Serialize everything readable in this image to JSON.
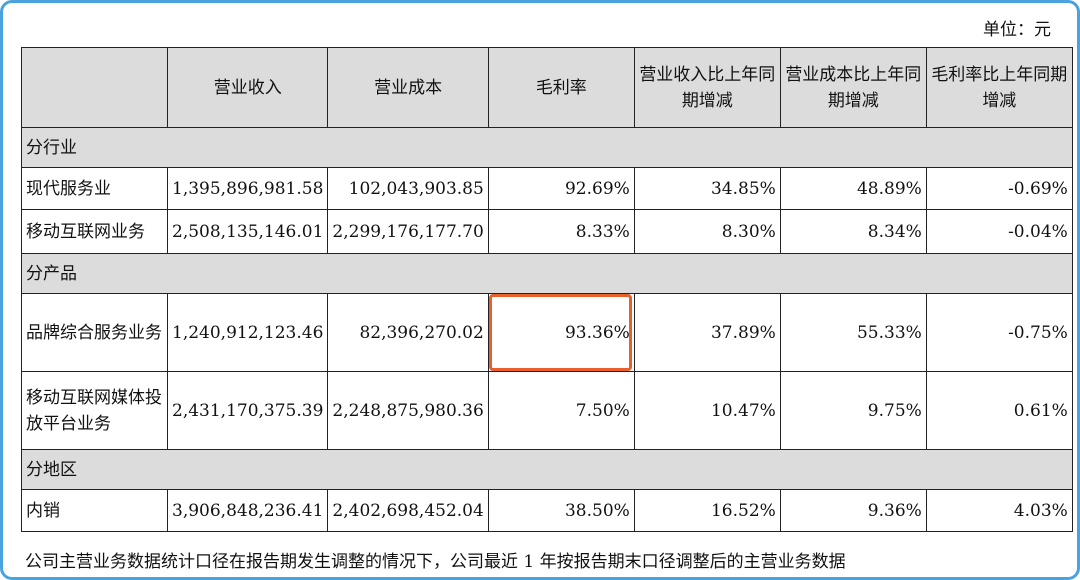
{
  "unit": "单位：元",
  "headers": [
    "",
    "营业收入",
    "营业成本",
    "毛利率",
    "营业收入比上年同期增减",
    "营业成本比上年同期增减",
    "毛利率比上年同期增减"
  ],
  "sections": [
    {
      "title": "分行业",
      "rows": [
        {
          "name": "现代服务业",
          "revenue": "1,395,896,981.58",
          "cost": "102,043,903.85",
          "margin": "92.69%",
          "rev_change": "34.85%",
          "cost_change": "48.89%",
          "margin_change": "-0.69%"
        },
        {
          "name": "移动互联网业务",
          "revenue": "2,508,135,146.01",
          "cost": "2,299,176,177.70",
          "margin": "8.33%",
          "rev_change": "8.30%",
          "cost_change": "8.34%",
          "margin_change": "-0.04%"
        }
      ]
    },
    {
      "title": "分产品",
      "rows": [
        {
          "name": "品牌综合服务业务",
          "revenue": "1,240,912,123.46",
          "cost": "82,396,270.02",
          "margin": "93.36%",
          "rev_change": "37.89%",
          "cost_change": "55.33%",
          "margin_change": "-0.75%"
        },
        {
          "name": "移动互联网媒体投放平台业务",
          "revenue": "2,431,170,375.39",
          "cost": "2,248,875,980.36",
          "margin": "7.50%",
          "rev_change": "10.47%",
          "cost_change": "9.75%",
          "margin_change": "0.61%"
        }
      ]
    },
    {
      "title": "分地区",
      "rows": [
        {
          "name": "内销",
          "revenue": "3,906,848,236.41",
          "cost": "2,402,698,452.04",
          "margin": "38.50%",
          "rev_change": "16.52%",
          "cost_change": "9.36%",
          "margin_change": "4.03%"
        }
      ]
    }
  ],
  "footnote": "公司主营业务数据统计口径在报告期发生调整的情况下，公司最近 1 年按报告期末口径调整后的主营业务数据",
  "highlight_color": "#e8602c"
}
